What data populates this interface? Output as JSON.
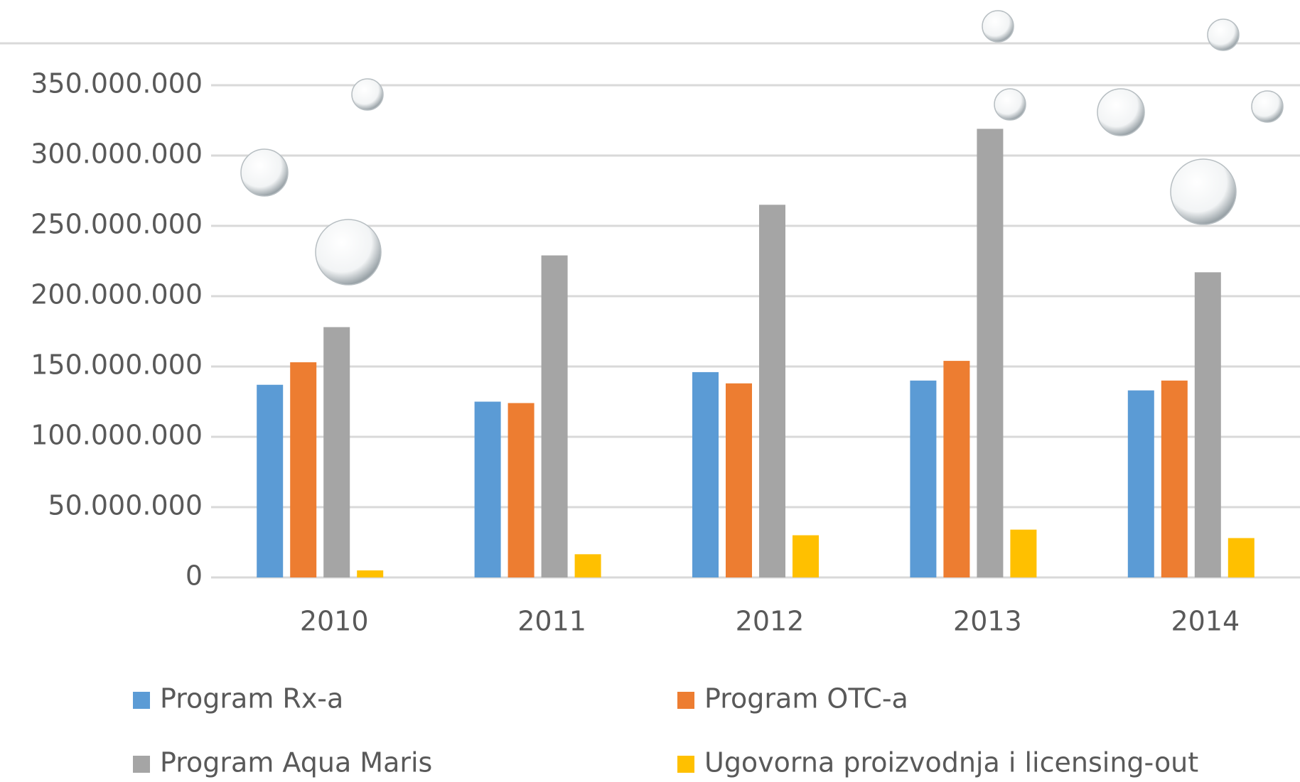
{
  "chart_data": {
    "type": "bar",
    "categories": [
      "2010",
      "2011",
      "2012",
      "2013",
      "2014"
    ],
    "series": [
      {
        "name": "Program Rx-a",
        "color": "#5b9bd5",
        "values": [
          137000000,
          125000000,
          146000000,
          140000000,
          133000000
        ]
      },
      {
        "name": "Program OTC-a",
        "color": "#ed7d31",
        "values": [
          153000000,
          124000000,
          138000000,
          154000000,
          140000000
        ]
      },
      {
        "name": "Program Aqua Maris",
        "color": "#a5a5a5",
        "values": [
          178000000,
          229000000,
          265000000,
          319000000,
          217000000
        ]
      },
      {
        "name": "Ugovorna proizvodnja i licensing-out",
        "color": "#ffc000",
        "values": [
          5000000,
          16500000,
          30000000,
          34000000,
          28000000
        ]
      }
    ],
    "ylim": [
      0,
      350000000
    ],
    "yticks": [
      0,
      {
        "value": 50000000,
        "label": "50.000.000"
      },
      {
        "value": 100000000,
        "label": "100.000.000"
      },
      {
        "value": 150000000,
        "label": "150.000.000"
      },
      {
        "value": 200000000,
        "label": "200.000.000"
      },
      {
        "value": 250000000,
        "label": "250.000.000"
      },
      {
        "value": 300000000,
        "label": "300.000.000"
      },
      {
        "value": 350000000,
        "label": "350.000.000"
      }
    ],
    "grid": true
  }
}
